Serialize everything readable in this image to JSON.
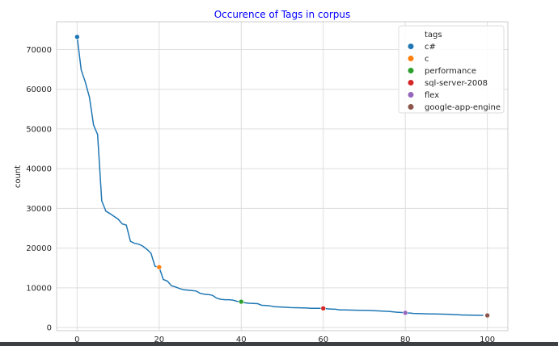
{
  "chart_data": {
    "type": "line",
    "title": "Occurence of Tags in corpus",
    "title_color": "#0000ff",
    "xlabel": "",
    "ylabel": "count",
    "xlim": [
      -5,
      105
    ],
    "ylim": [
      -800,
      77000
    ],
    "xticks": [
      0,
      20,
      40,
      60,
      80,
      100
    ],
    "yticks": [
      0,
      10000,
      20000,
      30000,
      40000,
      50000,
      60000,
      70000
    ],
    "grid": true,
    "line_color": "#1f77b4",
    "series": [
      {
        "values": [
          73200,
          64900,
          61800,
          58000,
          51000,
          48600,
          31900,
          29300,
          28700,
          28000,
          27300,
          26100,
          25800,
          21700,
          21200,
          21000,
          20500,
          19700,
          18700,
          15400,
          15200,
          12100,
          11700,
          10500,
          10200,
          9800,
          9500,
          9400,
          9300,
          9200,
          8600,
          8400,
          8300,
          8100,
          7400,
          7100,
          7000,
          7000,
          6900,
          6600,
          6500,
          6200,
          6100,
          6050,
          6000,
          5600,
          5550,
          5450,
          5250,
          5200,
          5150,
          5100,
          5000,
          4980,
          4960,
          4940,
          4900,
          4850,
          4850,
          4840,
          4830,
          4700,
          4650,
          4600,
          4450,
          4420,
          4400,
          4380,
          4360,
          4340,
          4320,
          4300,
          4250,
          4200,
          4150,
          4100,
          4050,
          3950,
          3850,
          3800,
          3700,
          3650,
          3550,
          3500,
          3480,
          3450,
          3420,
          3400,
          3380,
          3360,
          3340,
          3300,
          3250,
          3200,
          3150,
          3150,
          3100,
          3080,
          3060,
          3050
        ]
      }
    ],
    "highlights": [
      {
        "x": 0,
        "y": 73200,
        "tag": "c#",
        "color": "#1f77b4"
      },
      {
        "x": 20,
        "y": 15200,
        "tag": "c",
        "color": "#ff7f0e"
      },
      {
        "x": 40,
        "y": 6500,
        "tag": "performance",
        "color": "#2ca02c"
      },
      {
        "x": 60,
        "y": 4830,
        "tag": "sql-server-2008",
        "color": "#d62728"
      },
      {
        "x": 80,
        "y": 3700,
        "tag": "flex",
        "color": "#9467bd"
      },
      {
        "x": 100,
        "y": 3040,
        "tag": "google-app-engine",
        "color": "#8c564b"
      }
    ],
    "legend": {
      "title": "tags",
      "placement": "top-right",
      "entries": [
        {
          "label": "c#",
          "color": "#1f77b4"
        },
        {
          "label": "c",
          "color": "#ff7f0e"
        },
        {
          "label": "performance",
          "color": "#2ca02c"
        },
        {
          "label": "sql-server-2008",
          "color": "#d62728"
        },
        {
          "label": "flex",
          "color": "#9467bd"
        },
        {
          "label": "google-app-engine",
          "color": "#8c564b"
        }
      ]
    }
  }
}
